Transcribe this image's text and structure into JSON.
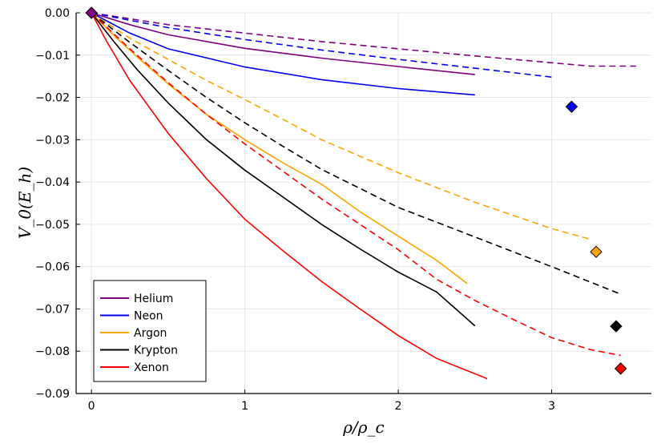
{
  "chart_data": {
    "type": "line",
    "title": "",
    "xlabel": "ρ/ρ_c",
    "ylabel": "V_0(E_h)",
    "xlim": [
      -0.1,
      3.65
    ],
    "ylim": [
      -0.09,
      0.0
    ],
    "grid": true,
    "legend_position": "bottom-left",
    "x_ticks": [
      0,
      1,
      2,
      3
    ],
    "x_tick_labels": [
      "0",
      "1",
      "2",
      "3"
    ],
    "y_ticks": [
      0.0,
      -0.01,
      -0.02,
      -0.03,
      -0.04,
      -0.05,
      -0.06,
      -0.07,
      -0.08,
      -0.09
    ],
    "y_tick_labels": [
      "0.00",
      "−0.01",
      "−0.02",
      "−0.03",
      "−0.04",
      "−0.05",
      "−0.06",
      "−0.07",
      "−0.08",
      "−0.09"
    ],
    "series": [
      {
        "name": "Helium",
        "color": "#800080",
        "solid": [
          [
            0,
            0
          ],
          [
            0.25,
            -0.0028
          ],
          [
            0.5,
            -0.0052
          ],
          [
            1.0,
            -0.0084
          ],
          [
            1.5,
            -0.0107
          ],
          [
            2.0,
            -0.0127
          ],
          [
            2.5,
            -0.0146
          ]
        ],
        "dashed": [
          [
            0,
            0
          ],
          [
            0.5,
            -0.0028
          ],
          [
            1.0,
            -0.0048
          ],
          [
            1.5,
            -0.0068
          ],
          [
            2.0,
            -0.0085
          ],
          [
            2.5,
            -0.0102
          ],
          [
            3.0,
            -0.0118
          ],
          [
            3.25,
            -0.0126
          ],
          [
            3.55,
            -0.0126
          ]
        ],
        "marker": [
          0,
          0
        ]
      },
      {
        "name": "Neon",
        "color": "#0000ee",
        "solid": [
          [
            0,
            0
          ],
          [
            0.25,
            -0.0048
          ],
          [
            0.5,
            -0.0085
          ],
          [
            1.0,
            -0.0128
          ],
          [
            1.5,
            -0.0158
          ],
          [
            2.0,
            -0.0179
          ],
          [
            2.5,
            -0.0194
          ]
        ],
        "dashed": [
          [
            0,
            0
          ],
          [
            0.5,
            -0.0035
          ],
          [
            1.0,
            -0.0063
          ],
          [
            1.5,
            -0.0088
          ],
          [
            2.0,
            -0.011
          ],
          [
            2.5,
            -0.0131
          ],
          [
            3.0,
            -0.0152
          ]
        ],
        "marker": [
          3.13,
          -0.0222
        ]
      },
      {
        "name": "Argon",
        "color": "#ffa500",
        "solid": [
          [
            0,
            0
          ],
          [
            0.15,
            -0.0055
          ],
          [
            0.3,
            -0.0105
          ],
          [
            0.5,
            -0.0168
          ],
          [
            0.75,
            -0.024
          ],
          [
            1.0,
            -0.03
          ],
          [
            1.25,
            -0.0355
          ],
          [
            1.5,
            -0.0405
          ],
          [
            1.75,
            -0.047
          ],
          [
            2.0,
            -0.0528
          ],
          [
            2.25,
            -0.0585
          ],
          [
            2.45,
            -0.064
          ]
        ],
        "dashed": [
          [
            0,
            0
          ],
          [
            0.25,
            -0.006
          ],
          [
            0.5,
            -0.011
          ],
          [
            0.75,
            -0.016
          ],
          [
            1.0,
            -0.0205
          ],
          [
            1.25,
            -0.0252
          ],
          [
            1.5,
            -0.03
          ],
          [
            2.0,
            -0.0378
          ],
          [
            2.5,
            -0.0448
          ],
          [
            3.0,
            -0.051
          ],
          [
            3.25,
            -0.0535
          ]
        ],
        "marker": [
          3.29,
          -0.0565
        ]
      },
      {
        "name": "Krypton",
        "color": "#000000",
        "solid": [
          [
            0,
            0
          ],
          [
            0.15,
            -0.007
          ],
          [
            0.3,
            -0.0135
          ],
          [
            0.5,
            -0.0213
          ],
          [
            0.75,
            -0.03
          ],
          [
            1.0,
            -0.0372
          ],
          [
            1.25,
            -0.0436
          ],
          [
            1.5,
            -0.05
          ],
          [
            1.75,
            -0.0558
          ],
          [
            2.0,
            -0.0613
          ],
          [
            2.25,
            -0.066
          ],
          [
            2.5,
            -0.074
          ]
        ],
        "dashed": [
          [
            0,
            0
          ],
          [
            0.25,
            -0.007
          ],
          [
            0.5,
            -0.0136
          ],
          [
            0.75,
            -0.02
          ],
          [
            1.0,
            -0.026
          ],
          [
            1.25,
            -0.0316
          ],
          [
            1.5,
            -0.037
          ],
          [
            2.0,
            -0.046
          ],
          [
            2.5,
            -0.053
          ],
          [
            3.0,
            -0.06
          ],
          [
            3.45,
            -0.0665
          ]
        ],
        "marker": [
          3.42,
          -0.0741
        ]
      },
      {
        "name": "Xenon",
        "color": "#ff0000",
        "solid": [
          [
            0,
            0
          ],
          [
            0.1,
            -0.0068
          ],
          [
            0.25,
            -0.016
          ],
          [
            0.5,
            -0.0285
          ],
          [
            0.75,
            -0.0392
          ],
          [
            1.0,
            -0.0488
          ],
          [
            1.25,
            -0.0563
          ],
          [
            1.5,
            -0.0635
          ],
          [
            1.75,
            -0.07
          ],
          [
            2.0,
            -0.0763
          ],
          [
            2.25,
            -0.0817
          ],
          [
            2.58,
            -0.0865
          ]
        ],
        "dashed": [
          [
            0,
            0
          ],
          [
            0.25,
            -0.0085
          ],
          [
            0.5,
            -0.0165
          ],
          [
            0.75,
            -0.024
          ],
          [
            1.0,
            -0.031
          ],
          [
            1.25,
            -0.0375
          ],
          [
            1.5,
            -0.044
          ],
          [
            1.75,
            -0.05
          ],
          [
            2.0,
            -0.056
          ],
          [
            2.25,
            -0.063
          ],
          [
            2.5,
            -0.068
          ],
          [
            2.75,
            -0.0725
          ],
          [
            3.0,
            -0.0768
          ],
          [
            3.25,
            -0.0796
          ],
          [
            3.45,
            -0.081
          ]
        ],
        "marker": [
          3.45,
          -0.0841
        ]
      }
    ]
  }
}
